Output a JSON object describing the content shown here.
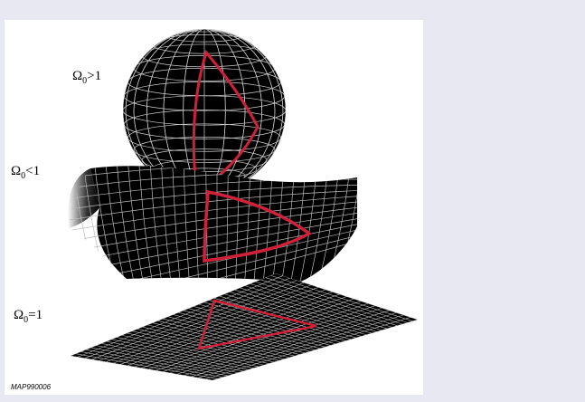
{
  "labels": [
    {
      "symbol": "Ω",
      "subscript": "0",
      "relation": ">1"
    },
    {
      "symbol": "Ω",
      "subscript": "0",
      "relation": "<1"
    },
    {
      "symbol": "Ω",
      "subscript": "0",
      "relation": "=1"
    }
  ],
  "credit": "MAP990006"
}
